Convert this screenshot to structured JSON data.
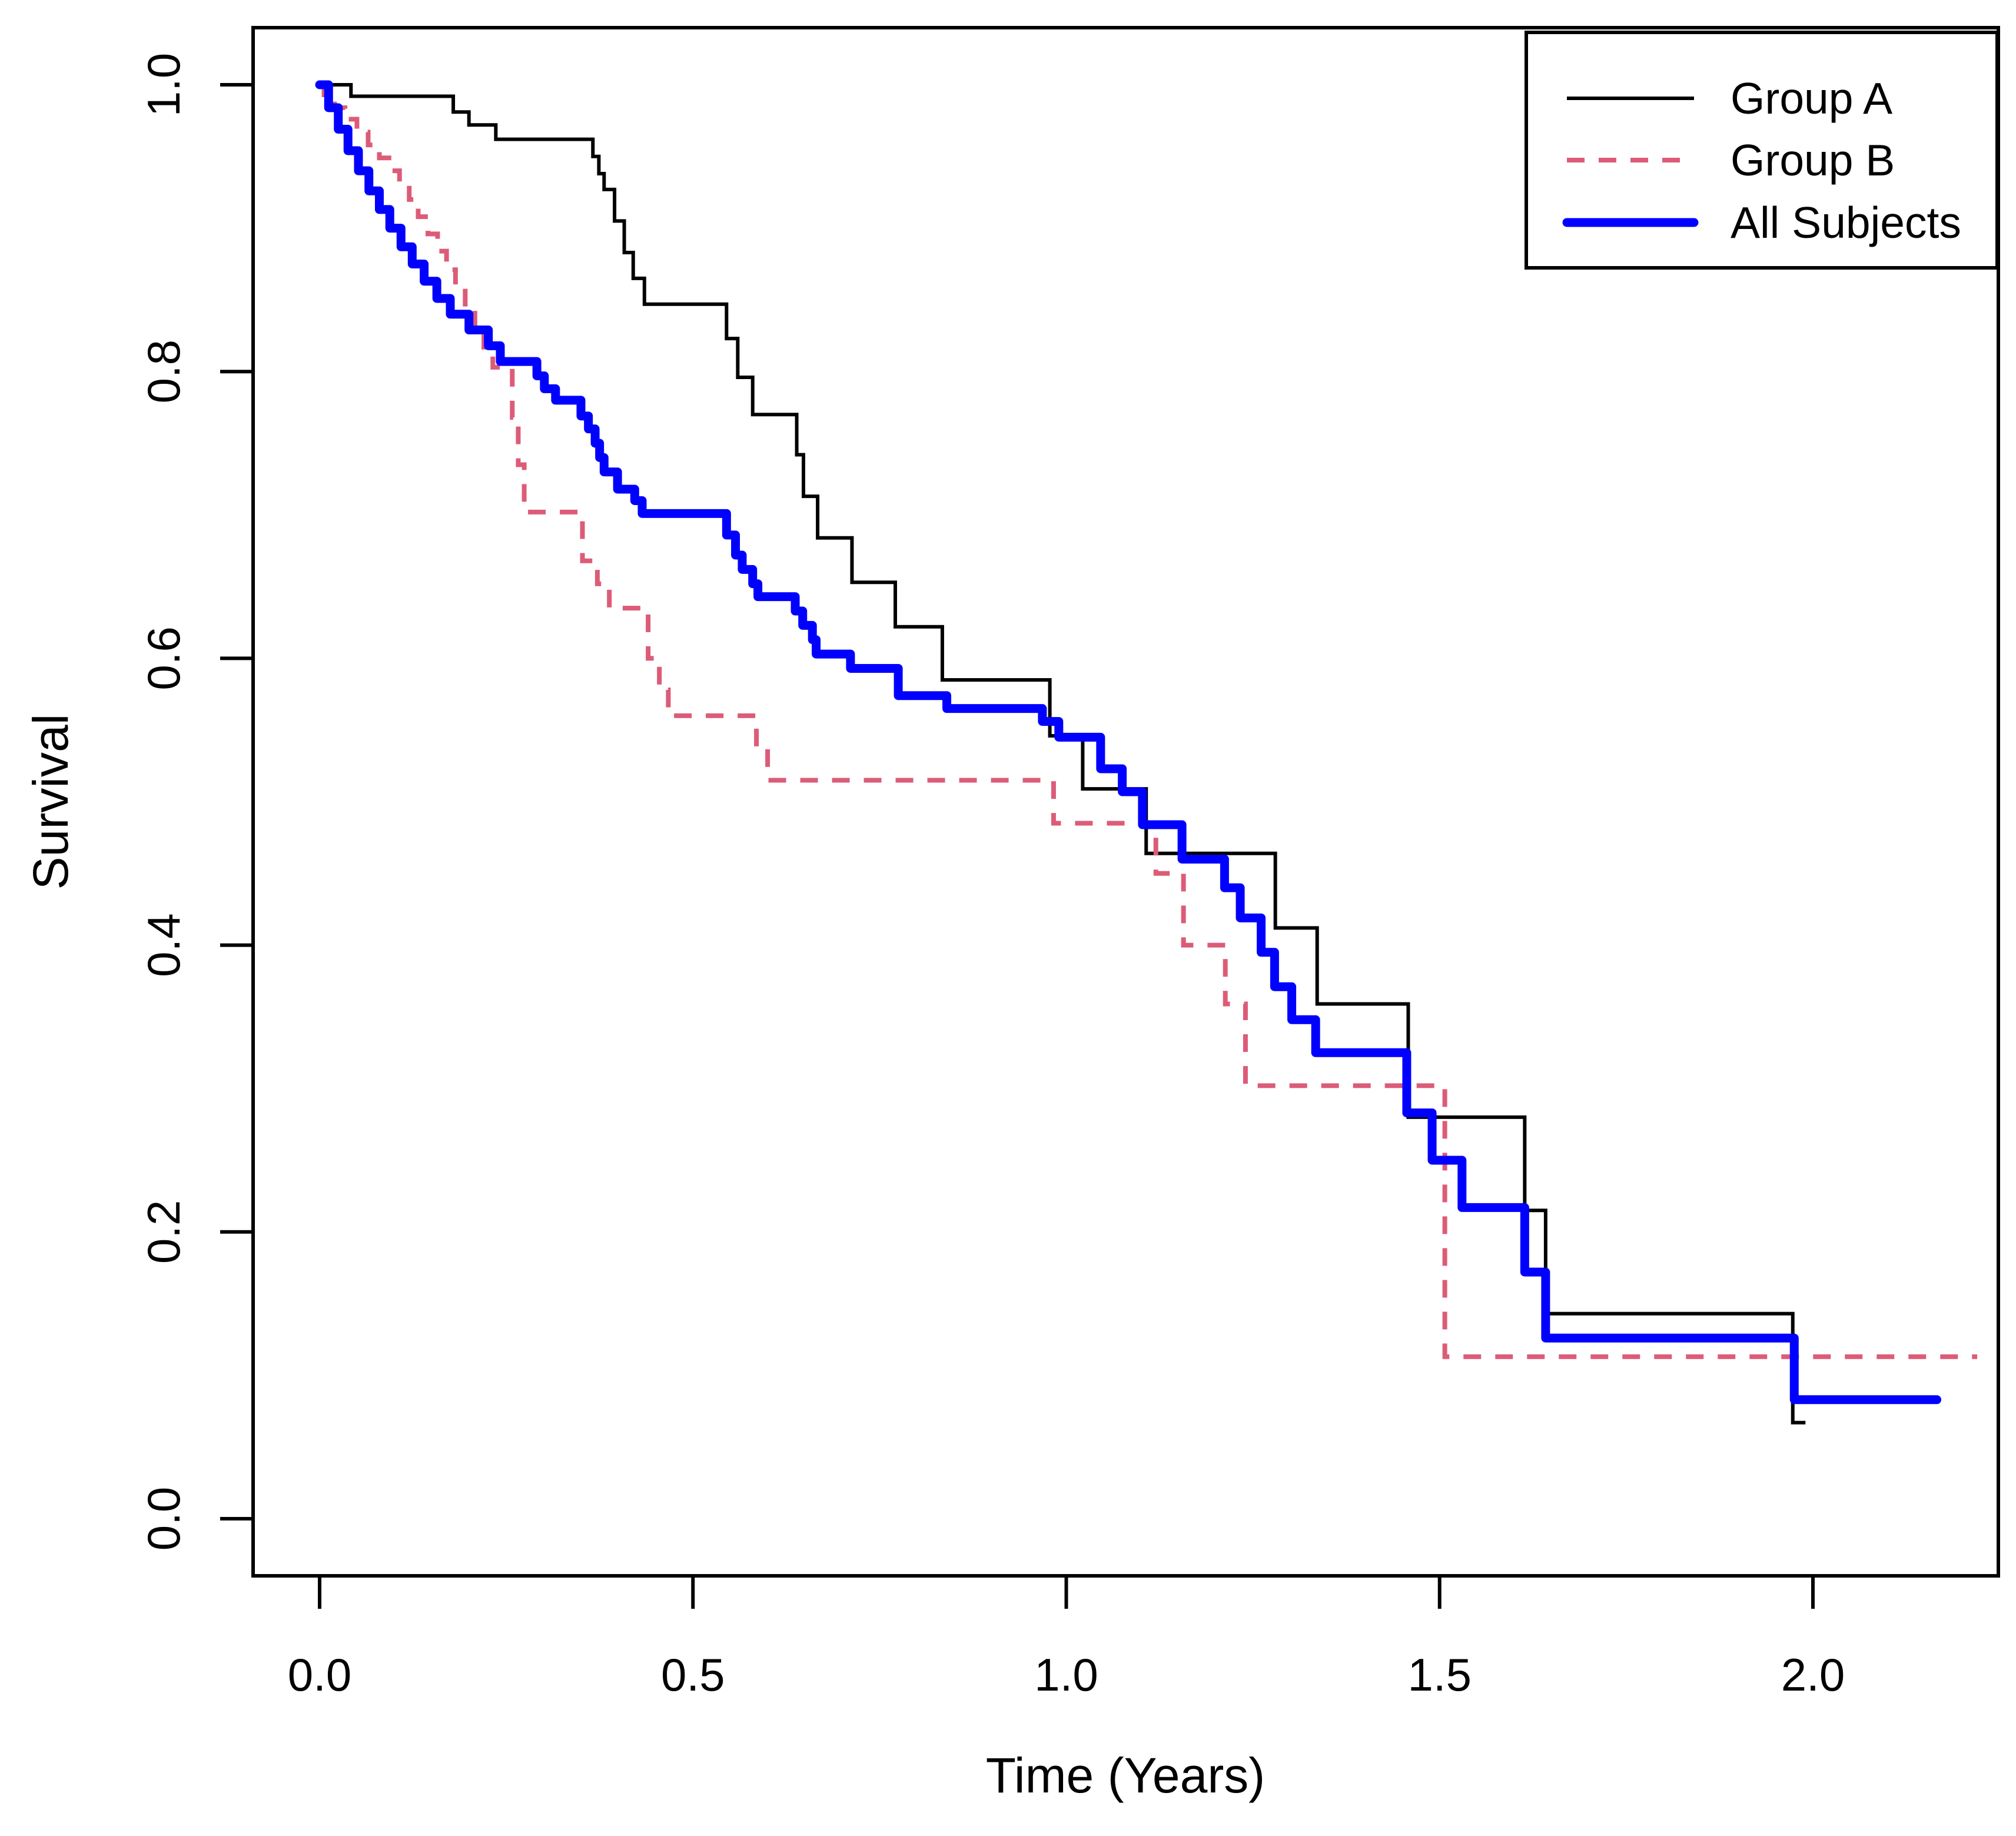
{
  "chart_data": {
    "type": "line",
    "subtype": "kaplan-meier-step",
    "title": "",
    "xlabel": "Time (Years)",
    "ylabel": "Survival",
    "x_tick_labels": [
      "0.0",
      "0.5",
      "1.0",
      "1.5",
      "2.0"
    ],
    "y_tick_labels": [
      "0.0",
      "0.2",
      "0.4",
      "0.6",
      "0.8",
      "1.0"
    ],
    "xlim": [
      -0.089,
      2.248
    ],
    "ylim": [
      -0.04,
      1.04
    ],
    "grid": false,
    "legend_position": "topright",
    "background": "#FFFFFF",
    "axis_color": "#000000",
    "series": [
      {
        "name": "Group A",
        "color": "#000000",
        "width": 6,
        "dash": null,
        "end_t": 1.99,
        "steps": [
          [
            0,
            1.0
          ],
          [
            0.042,
            0.992
          ],
          [
            0.179,
            0.981
          ],
          [
            0.2,
            0.972
          ],
          [
            0.236,
            0.962
          ],
          [
            0.366,
            0.95
          ],
          [
            0.374,
            0.938
          ],
          [
            0.381,
            0.927
          ],
          [
            0.395,
            0.905
          ],
          [
            0.408,
            0.883
          ],
          [
            0.42,
            0.865
          ],
          [
            0.435,
            0.847
          ],
          [
            0.545,
            0.823
          ],
          [
            0.56,
            0.796
          ],
          [
            0.58,
            0.77
          ],
          [
            0.639,
            0.742
          ],
          [
            0.648,
            0.713
          ],
          [
            0.667,
            0.684
          ],
          [
            0.713,
            0.653
          ],
          [
            0.771,
            0.622
          ],
          [
            0.834,
            0.585
          ],
          [
            0.978,
            0.546
          ],
          [
            1.022,
            0.509
          ],
          [
            1.107,
            0.464
          ],
          [
            1.28,
            0.412
          ],
          [
            1.336,
            0.359
          ],
          [
            1.458,
            0.28
          ],
          [
            1.614,
            0.215
          ],
          [
            1.642,
            0.143
          ],
          [
            1.973,
            0.067
          ]
        ]
      },
      {
        "name": "Group B",
        "color": "#DC5C78",
        "width": 8,
        "dash": [
          30,
          24
        ],
        "end_t": 2.22,
        "steps": [
          [
            0,
            1.0
          ],
          [
            0.006,
            0.993
          ],
          [
            0.02,
            0.984
          ],
          [
            0.034,
            0.976
          ],
          [
            0.05,
            0.967
          ],
          [
            0.065,
            0.958
          ],
          [
            0.08,
            0.949
          ],
          [
            0.096,
            0.94
          ],
          [
            0.107,
            0.93
          ],
          [
            0.12,
            0.92
          ],
          [
            0.132,
            0.908
          ],
          [
            0.145,
            0.896
          ],
          [
            0.158,
            0.884
          ],
          [
            0.17,
            0.871
          ],
          [
            0.182,
            0.858
          ],
          [
            0.195,
            0.845
          ],
          [
            0.208,
            0.831
          ],
          [
            0.22,
            0.817
          ],
          [
            0.232,
            0.803
          ],
          [
            0.258,
            0.768
          ],
          [
            0.266,
            0.735
          ],
          [
            0.274,
            0.702
          ],
          [
            0.352,
            0.668
          ],
          [
            0.372,
            0.652
          ],
          [
            0.388,
            0.635
          ],
          [
            0.44,
            0.6
          ],
          [
            0.455,
            0.578
          ],
          [
            0.467,
            0.56
          ],
          [
            0.585,
            0.537
          ],
          [
            0.6,
            0.515
          ],
          [
            0.983,
            0.485
          ],
          [
            1.12,
            0.45
          ],
          [
            1.157,
            0.4
          ],
          [
            1.213,
            0.359
          ],
          [
            1.24,
            0.302
          ],
          [
            1.507,
            0.113
          ]
        ]
      },
      {
        "name": "All Subjects",
        "color": "#0000FF",
        "width": 15,
        "dash": null,
        "end_t": 2.166,
        "steps": [
          [
            0,
            1.0
          ],
          [
            0.012,
            0.984
          ],
          [
            0.025,
            0.969
          ],
          [
            0.038,
            0.954
          ],
          [
            0.052,
            0.94
          ],
          [
            0.066,
            0.926
          ],
          [
            0.08,
            0.913
          ],
          [
            0.094,
            0.9
          ],
          [
            0.109,
            0.887
          ],
          [
            0.124,
            0.875
          ],
          [
            0.14,
            0.863
          ],
          [
            0.157,
            0.851
          ],
          [
            0.175,
            0.84
          ],
          [
            0.2,
            0.829
          ],
          [
            0.226,
            0.818
          ],
          [
            0.242,
            0.807
          ],
          [
            0.291,
            0.797
          ],
          [
            0.301,
            0.788
          ],
          [
            0.316,
            0.78
          ],
          [
            0.35,
            0.769
          ],
          [
            0.36,
            0.76
          ],
          [
            0.369,
            0.75
          ],
          [
            0.375,
            0.74
          ],
          [
            0.381,
            0.73
          ],
          [
            0.399,
            0.718
          ],
          [
            0.422,
            0.71
          ],
          [
            0.432,
            0.701
          ],
          [
            0.545,
            0.686
          ],
          [
            0.557,
            0.672
          ],
          [
            0.566,
            0.662
          ],
          [
            0.58,
            0.652
          ],
          [
            0.587,
            0.643
          ],
          [
            0.637,
            0.633
          ],
          [
            0.647,
            0.623
          ],
          [
            0.66,
            0.613
          ],
          [
            0.665,
            0.603
          ],
          [
            0.711,
            0.593
          ],
          [
            0.775,
            0.574
          ],
          [
            0.84,
            0.565
          ],
          [
            0.968,
            0.556
          ],
          [
            0.99,
            0.545
          ],
          [
            1.046,
            0.523
          ],
          [
            1.075,
            0.507
          ],
          [
            1.102,
            0.484
          ],
          [
            1.155,
            0.46
          ],
          [
            1.212,
            0.44
          ],
          [
            1.233,
            0.419
          ],
          [
            1.261,
            0.395
          ],
          [
            1.279,
            0.371
          ],
          [
            1.302,
            0.348
          ],
          [
            1.334,
            0.325
          ],
          [
            1.456,
            0.283
          ],
          [
            1.49,
            0.25
          ],
          [
            1.53,
            0.217
          ],
          [
            1.614,
            0.172
          ],
          [
            1.642,
            0.126
          ],
          [
            1.975,
            0.083
          ]
        ]
      }
    ]
  }
}
